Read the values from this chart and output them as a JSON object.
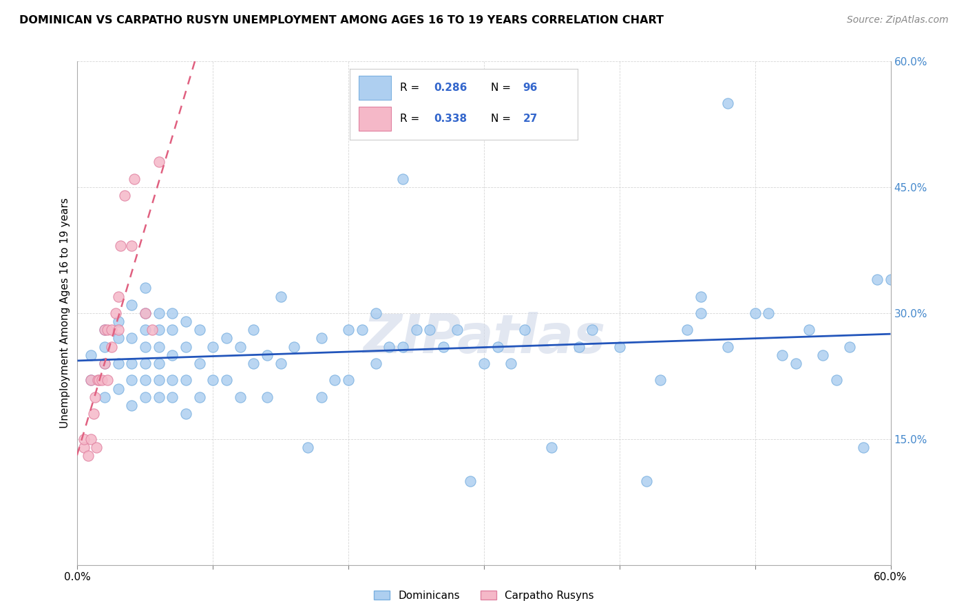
{
  "title": "DOMINICAN VS CARPATHO RUSYN UNEMPLOYMENT AMONG AGES 16 TO 19 YEARS CORRELATION CHART",
  "source": "Source: ZipAtlas.com",
  "ylabel": "Unemployment Among Ages 16 to 19 years",
  "xlim": [
    0.0,
    0.6
  ],
  "ylim": [
    0.0,
    0.6
  ],
  "xticks": [
    0.0,
    0.1,
    0.2,
    0.3,
    0.4,
    0.5,
    0.6
  ],
  "yticks": [
    0.0,
    0.15,
    0.3,
    0.45,
    0.6
  ],
  "dominican_color": "#aecff0",
  "dominican_edge": "#7ab0e0",
  "carpatho_color": "#f5b8c8",
  "carpatho_edge": "#e080a0",
  "trend_dominican_color": "#2255bb",
  "trend_carpatho_color": "#e06080",
  "R_dominican": 0.286,
  "N_dominican": 96,
  "R_carpatho": 0.338,
  "N_carpatho": 27,
  "watermark": "ZIPatlas",
  "legend_R_color": "#3366cc",
  "dominican_x": [
    0.01,
    0.01,
    0.02,
    0.02,
    0.02,
    0.02,
    0.03,
    0.03,
    0.03,
    0.03,
    0.04,
    0.04,
    0.04,
    0.04,
    0.04,
    0.05,
    0.05,
    0.05,
    0.05,
    0.05,
    0.05,
    0.05,
    0.06,
    0.06,
    0.06,
    0.06,
    0.06,
    0.06,
    0.07,
    0.07,
    0.07,
    0.07,
    0.07,
    0.08,
    0.08,
    0.08,
    0.08,
    0.09,
    0.09,
    0.09,
    0.1,
    0.1,
    0.11,
    0.11,
    0.12,
    0.12,
    0.13,
    0.13,
    0.14,
    0.14,
    0.15,
    0.15,
    0.16,
    0.17,
    0.18,
    0.18,
    0.19,
    0.2,
    0.2,
    0.21,
    0.22,
    0.22,
    0.23,
    0.24,
    0.24,
    0.25,
    0.26,
    0.27,
    0.28,
    0.29,
    0.3,
    0.31,
    0.32,
    0.33,
    0.35,
    0.37,
    0.38,
    0.4,
    0.42,
    0.43,
    0.45,
    0.46,
    0.48,
    0.5,
    0.51,
    0.53,
    0.55,
    0.56,
    0.57,
    0.58,
    0.59,
    0.6,
    0.46,
    0.48,
    0.52,
    0.54
  ],
  "dominican_y": [
    0.22,
    0.25,
    0.2,
    0.24,
    0.26,
    0.28,
    0.21,
    0.24,
    0.27,
    0.29,
    0.19,
    0.22,
    0.24,
    0.27,
    0.31,
    0.2,
    0.22,
    0.24,
    0.26,
    0.28,
    0.3,
    0.33,
    0.2,
    0.22,
    0.24,
    0.26,
    0.28,
    0.3,
    0.2,
    0.22,
    0.25,
    0.28,
    0.3,
    0.18,
    0.22,
    0.26,
    0.29,
    0.2,
    0.24,
    0.28,
    0.22,
    0.26,
    0.22,
    0.27,
    0.2,
    0.26,
    0.24,
    0.28,
    0.2,
    0.25,
    0.24,
    0.32,
    0.26,
    0.14,
    0.2,
    0.27,
    0.22,
    0.22,
    0.28,
    0.28,
    0.24,
    0.3,
    0.26,
    0.26,
    0.46,
    0.28,
    0.28,
    0.26,
    0.28,
    0.1,
    0.24,
    0.26,
    0.24,
    0.28,
    0.14,
    0.26,
    0.28,
    0.26,
    0.1,
    0.22,
    0.28,
    0.32,
    0.55,
    0.3,
    0.3,
    0.24,
    0.25,
    0.22,
    0.26,
    0.14,
    0.34,
    0.34,
    0.3,
    0.26,
    0.25,
    0.28
  ],
  "carpatho_x": [
    0.005,
    0.005,
    0.008,
    0.01,
    0.01,
    0.012,
    0.013,
    0.014,
    0.015,
    0.016,
    0.018,
    0.02,
    0.02,
    0.022,
    0.022,
    0.025,
    0.025,
    0.028,
    0.03,
    0.03,
    0.032,
    0.035,
    0.04,
    0.042,
    0.05,
    0.055,
    0.06
  ],
  "carpatho_y": [
    0.14,
    0.15,
    0.13,
    0.15,
    0.22,
    0.18,
    0.2,
    0.14,
    0.22,
    0.22,
    0.22,
    0.24,
    0.28,
    0.22,
    0.28,
    0.26,
    0.28,
    0.3,
    0.28,
    0.32,
    0.38,
    0.44,
    0.38,
    0.46,
    0.3,
    0.28,
    0.48
  ]
}
